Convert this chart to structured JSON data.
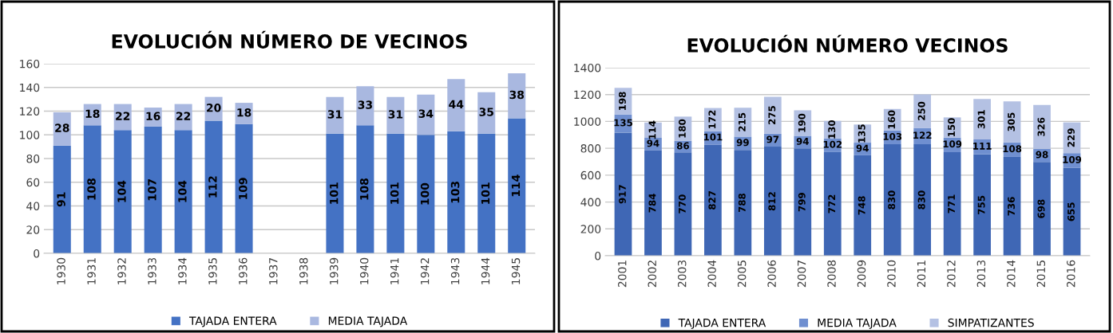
{
  "chart_data": [
    {
      "type": "bar",
      "title": "EVOLUCIÓN NÚMERO DE VECINOS",
      "stacked": true,
      "data_labels": true,
      "legend": "bottom",
      "grid": "y",
      "categories": [
        "1930",
        "1931",
        "1932",
        "1933",
        "1934",
        "1935",
        "1936",
        "1937",
        "1938",
        "1939",
        "1940",
        "1941",
        "1942",
        "1943",
        "1944",
        "1945"
      ],
      "ylim": [
        0,
        160
      ],
      "yticks": [
        0,
        20,
        40,
        60,
        80,
        100,
        120,
        140,
        160
      ],
      "series": [
        {
          "name": "TAJADA ENTERA",
          "color": "#4472c4",
          "values": [
            91,
            108,
            104,
            107,
            104,
            112,
            109,
            null,
            null,
            101,
            108,
            101,
            100,
            103,
            101,
            114
          ]
        },
        {
          "name": "MEDIA TAJADA",
          "color": "#a9b8e0",
          "values": [
            28,
            18,
            22,
            16,
            22,
            20,
            18,
            null,
            null,
            31,
            33,
            31,
            34,
            44,
            35,
            38
          ]
        }
      ]
    },
    {
      "type": "bar",
      "title": "EVOLUCIÓN NÚMERO VECINOS",
      "stacked": true,
      "data_labels": true,
      "legend": "bottom",
      "grid": "y",
      "categories": [
        "2001",
        "2002",
        "2003",
        "2004",
        "2005",
        "2006",
        "2007",
        "2008",
        "2009",
        "2010",
        "2011",
        "2012",
        "2013",
        "2014",
        "2015",
        "2016"
      ],
      "ylim": [
        0,
        1400
      ],
      "yticks": [
        0,
        200,
        400,
        600,
        800,
        1000,
        1200,
        1400
      ],
      "series": [
        {
          "name": "TAJADA ENTERA",
          "color": "#3f67b5",
          "values": [
            917,
            784,
            770,
            827,
            788,
            812,
            799,
            772,
            748,
            830,
            830,
            771,
            755,
            736,
            698,
            655
          ]
        },
        {
          "name": "MEDIA TAJADA",
          "color": "#6f8fd0",
          "values": [
            135,
            94,
            86,
            101,
            99,
            97,
            94,
            102,
            94,
            103,
            122,
            109,
            111,
            108,
            98,
            109
          ]
        },
        {
          "name": "SIMPATIZANTES",
          "color": "#b4c1e3",
          "values": [
            198,
            114,
            180,
            172,
            215,
            275,
            190,
            130,
            135,
            160,
            250,
            150,
            301,
            305,
            326,
            229
          ]
        }
      ]
    }
  ]
}
